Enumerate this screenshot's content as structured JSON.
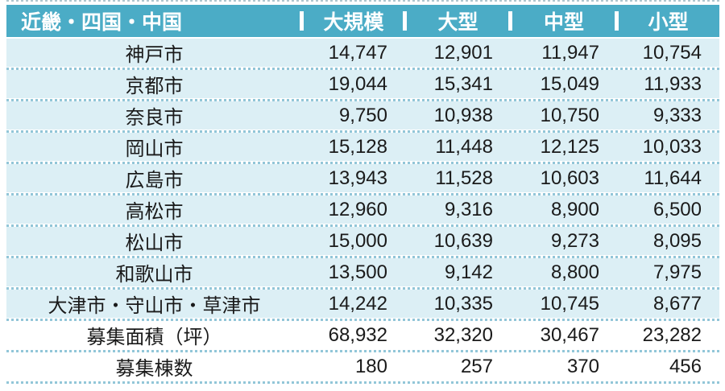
{
  "chart_data": {
    "type": "table",
    "region_header": "近畿・四国・中国",
    "columns": [
      "大規模",
      "大型",
      "中型",
      "小型"
    ],
    "rows": [
      {
        "label": "神戸市",
        "values": [
          "14,747",
          "12,901",
          "11,947",
          "10,754"
        ]
      },
      {
        "label": "京都市",
        "values": [
          "19,044",
          "15,341",
          "15,049",
          "11,933"
        ]
      },
      {
        "label": "奈良市",
        "values": [
          "9,750",
          "10,938",
          "10,750",
          "9,333"
        ]
      },
      {
        "label": "岡山市",
        "values": [
          "15,128",
          "11,448",
          "12,125",
          "10,033"
        ]
      },
      {
        "label": "広島市",
        "values": [
          "13,943",
          "11,528",
          "10,603",
          "11,644"
        ]
      },
      {
        "label": "高松市",
        "values": [
          "12,960",
          "9,316",
          "8,900",
          "6,500"
        ]
      },
      {
        "label": "松山市",
        "values": [
          "15,000",
          "10,639",
          "9,273",
          "8,095"
        ]
      },
      {
        "label": "和歌山市",
        "values": [
          "13,500",
          "9,142",
          "8,800",
          "7,975"
        ]
      },
      {
        "label": "大津市・守山市・草津市",
        "values": [
          "14,242",
          "10,335",
          "10,745",
          "8,677"
        ]
      },
      {
        "label": "募集面積（坪）",
        "values": [
          "68,932",
          "32,320",
          "30,467",
          "23,282"
        ]
      },
      {
        "label": "募集棟数",
        "values": [
          "180",
          "257",
          "370",
          "456"
        ]
      }
    ]
  },
  "colors": {
    "header_bg": "#4BACC6",
    "header_text": "#FFFFFF",
    "row_bg": "#DCEFF5",
    "summary_row_bg": "#FFFFFF",
    "divider_dot": "#92C6D8",
    "text": "#1A1A1A"
  }
}
